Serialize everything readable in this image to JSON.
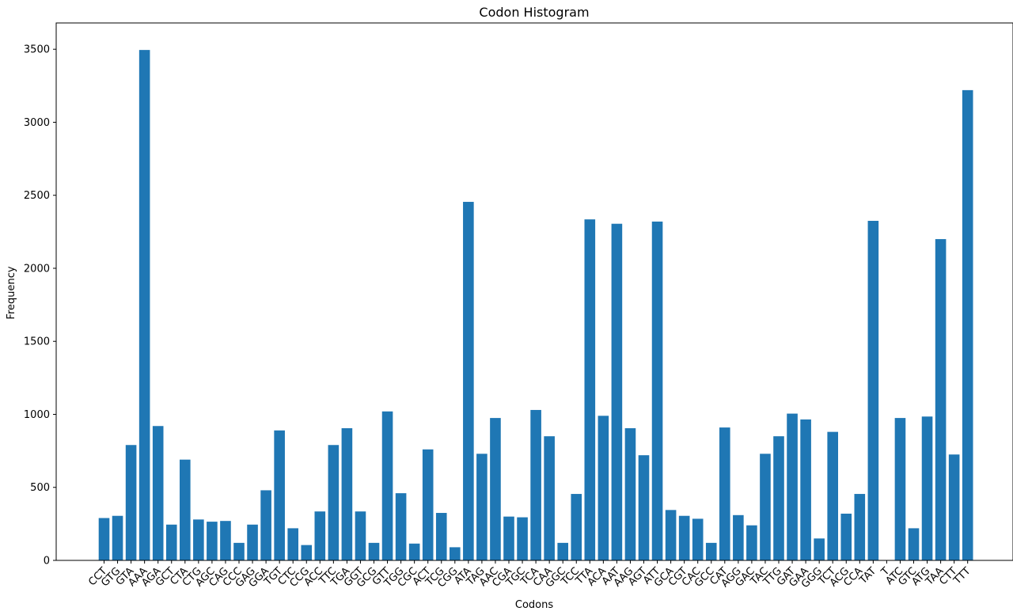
{
  "chart_data": {
    "type": "bar",
    "title": "Codon Histogram",
    "xlabel": "Codons",
    "ylabel": "Frequency",
    "ylim": [
      0,
      3680
    ],
    "yticks": [
      0,
      500,
      1000,
      1500,
      2000,
      2500,
      3000,
      3500
    ],
    "grid": false,
    "legend": "none",
    "bar_color": "#1f77b4",
    "categories": [
      "CCT",
      "GTG",
      "GTA",
      "AAA",
      "AGA",
      "GCT",
      "CTA",
      "CTG",
      "AGC",
      "CAG",
      "CCC",
      "GAG",
      "GGA",
      "TGT",
      "CTC",
      "CCG",
      "ACC",
      "TTC",
      "TGA",
      "GGT",
      "GCG",
      "GTT",
      "TGG",
      "CGC",
      "ACT",
      "TCG",
      "CGG",
      "ATA",
      "TAG",
      "AAC",
      "CGA",
      "TGC",
      "TCA",
      "CAA",
      "GGC",
      "TCC",
      "TTA",
      "ACA",
      "AAT",
      "AAG",
      "AGT",
      "ATT",
      "GCA",
      "CGT",
      "CAC",
      "GCC",
      "CAT",
      "AGG",
      "GAC",
      "TAC",
      "TTG",
      "GAT",
      "GAA",
      "GGG",
      "TCT",
      "ACG",
      "CCA",
      "TAT",
      "T",
      "ATC",
      "GTC",
      "ATG",
      "TAA",
      "CTT",
      "TTT"
    ],
    "values": [
      290,
      305,
      790,
      3495,
      920,
      245,
      690,
      280,
      265,
      270,
      120,
      245,
      480,
      890,
      220,
      105,
      335,
      790,
      905,
      335,
      120,
      1020,
      460,
      115,
      760,
      325,
      90,
      2455,
      730,
      975,
      300,
      295,
      1030,
      850,
      120,
      455,
      2335,
      990,
      2305,
      905,
      720,
      2320,
      345,
      305,
      285,
      120,
      910,
      310,
      240,
      730,
      850,
      1005,
      965,
      150,
      880,
      320,
      455,
      2325,
      0,
      975,
      220,
      985,
      2200,
      725,
      3220
    ]
  }
}
